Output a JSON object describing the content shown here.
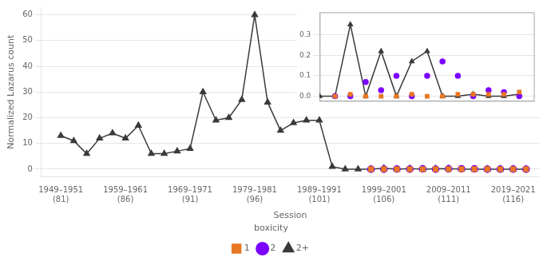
{
  "chart_data": [
    {
      "type": "scatter",
      "xlabel": "Session",
      "ylabel": "Normalized Lazarus count",
      "legend": "bottom",
      "legend_title": "boxicity",
      "grid": "y",
      "xlim": [
        1946,
        2023
      ],
      "ylim": [
        -3,
        63
      ],
      "xticks": [
        {
          "value": 1949,
          "label": "1949–1951\n(81)"
        },
        {
          "value": 1959,
          "label": "1959–1961\n(86)"
        },
        {
          "value": 1969,
          "label": "1969–1971\n(91)"
        },
        {
          "value": 1979,
          "label": "1979–1981\n(96)"
        },
        {
          "value": 1989,
          "label": "1989–1991\n(101)"
        },
        {
          "value": 1999,
          "label": "1999–2001\n(106)"
        },
        {
          "value": 2009,
          "label": "2009–2011\n(111)"
        },
        {
          "value": 2019,
          "label": "2019–2021\n(116)"
        }
      ],
      "yticks": [
        0,
        10,
        20,
        30,
        40,
        50,
        60
      ],
      "series": [
        {
          "name": "1",
          "color": "#E87722",
          "marker": "square",
          "line_style": "none",
          "x": [
            1997,
            1999,
            2001,
            2003,
            2005,
            2007,
            2009,
            2011,
            2013,
            2015,
            2017,
            2019,
            2021
          ],
          "values": [
            0.0,
            0.01,
            0.0,
            0.0,
            0.0,
            0.01,
            0.0,
            0.0,
            0.01,
            0.01,
            0.01,
            0.01,
            0.02
          ]
        },
        {
          "name": "2",
          "color": "#7B00FF",
          "marker": "circle",
          "line_style": "none",
          "x": [
            1997,
            1999,
            2001,
            2003,
            2005,
            2007,
            2009,
            2011,
            2013,
            2015,
            2017,
            2019,
            2021
          ],
          "values": [
            0.0,
            0.0,
            0.07,
            0.03,
            0.1,
            0.0,
            0.1,
            0.17,
            0.1,
            0.0,
            0.03,
            0.02,
            0.0
          ]
        },
        {
          "name": "2+",
          "color": "#3A3A3A",
          "marker": "triangle",
          "line_style": "solid",
          "x": [
            1949,
            1951,
            1953,
            1955,
            1957,
            1959,
            1961,
            1963,
            1965,
            1967,
            1969,
            1971,
            1973,
            1975,
            1977,
            1979,
            1981,
            1983,
            1985,
            1987,
            1989,
            1991,
            1993,
            1995,
            1997,
            1999,
            2001,
            2003,
            2005,
            2007,
            2009,
            2011,
            2013,
            2015,
            2017,
            2019,
            2021
          ],
          "values": [
            13,
            11,
            6,
            12,
            14,
            12,
            17,
            6,
            6,
            7,
            8,
            30,
            19,
            20,
            27,
            60,
            26,
            15,
            18,
            19,
            19,
            1,
            0,
            0,
            0,
            0.35,
            0,
            0.22,
            0,
            0.17,
            0.22,
            0,
            0,
            0.01,
            0,
            0,
            0.01
          ]
        }
      ]
    },
    {
      "type": "scatter",
      "grid": "y",
      "tick_labels": "y",
      "xlim": [
        1995,
        2023
      ],
      "ylim": [
        -0.025,
        0.41
      ],
      "xticks": [],
      "yticks": [
        {
          "value": 0,
          "label": "0.0"
        },
        0.1,
        0.2,
        0.3
      ],
      "series": [
        {
          "color": "#E87722",
          "marker": "square",
          "line_style": "none",
          "x": [
            1997,
            1999,
            2001,
            2003,
            2005,
            2007,
            2009,
            2011,
            2013,
            2015,
            2017,
            2019,
            2021
          ],
          "values": [
            0.0,
            0.01,
            0.0,
            0.0,
            0.0,
            0.01,
            0.0,
            0.0,
            0.01,
            0.01,
            0.01,
            0.01,
            0.02
          ]
        },
        {
          "color": "#7B00FF",
          "marker": "circle",
          "line_style": "none",
          "x": [
            1997,
            1999,
            2001,
            2003,
            2005,
            2007,
            2009,
            2011,
            2013,
            2015,
            2017,
            2019,
            2021
          ],
          "values": [
            0.0,
            0.0,
            0.07,
            0.03,
            0.1,
            0.0,
            0.1,
            0.17,
            0.1,
            0.0,
            0.03,
            0.02,
            0.0
          ]
        },
        {
          "color": "#3A3A3A",
          "marker": "triangle",
          "line_style": "solid",
          "x": [
            1995,
            1997,
            1999,
            2001,
            2003,
            2005,
            2007,
            2009,
            2011,
            2013,
            2015,
            2017,
            2019,
            2021
          ],
          "values": [
            0,
            0,
            0.35,
            0,
            0.22,
            0,
            0.17,
            0.22,
            0,
            0,
            0.01,
            0,
            0,
            0.01
          ]
        }
      ]
    }
  ]
}
